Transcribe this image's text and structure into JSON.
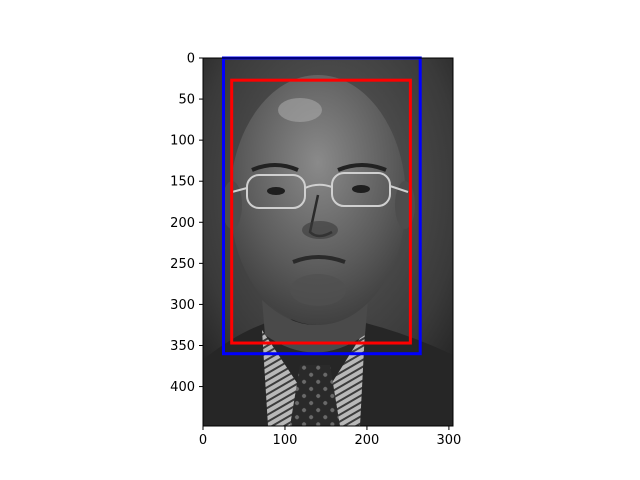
{
  "chart_data": {
    "type": "image",
    "image": {
      "width": 305,
      "height": 448,
      "subject": "grayscale portrait photograph of a man wearing glasses, jacket and tie"
    },
    "xlim": [
      0,
      305
    ],
    "ylim": [
      448,
      0
    ],
    "x_ticks": [
      0,
      100,
      200,
      300
    ],
    "y_ticks": [
      0,
      50,
      100,
      150,
      200,
      250,
      300,
      350,
      400
    ],
    "boxes": [
      {
        "color": "#0000ff",
        "x0": 25,
        "y0": 0,
        "x1": 265,
        "y1": 360
      },
      {
        "color": "#ff0000",
        "x0": 35,
        "y0": 27,
        "x1": 253,
        "y1": 347
      }
    ],
    "grid": false
  }
}
